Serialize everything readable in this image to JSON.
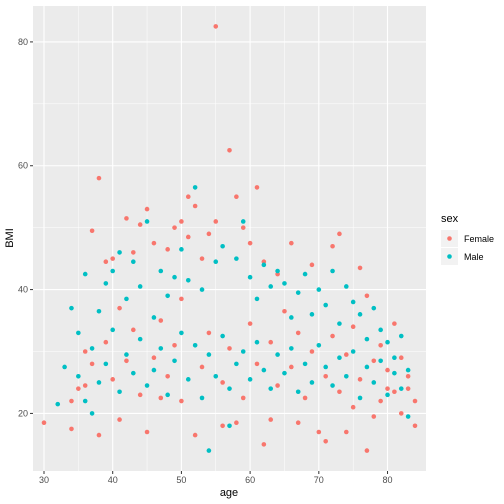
{
  "chart_data": {
    "type": "scatter",
    "xlabel": "age",
    "ylabel": "BMI",
    "xlim": [
      28.4,
      85.6
    ],
    "ylim": [
      10.7,
      85.8
    ],
    "xticks": [
      30,
      40,
      50,
      60,
      70,
      80
    ],
    "yticks": [
      20,
      40,
      60,
      80
    ],
    "grid": true,
    "legend": {
      "title": "sex",
      "placement": "right"
    },
    "series": [
      {
        "name": "Female",
        "color": "#F8766D",
        "points": [
          [
            30,
            18.5
          ],
          [
            34,
            22.0
          ],
          [
            34,
            17.5
          ],
          [
            35,
            24.0
          ],
          [
            36,
            30.0
          ],
          [
            37,
            49.5
          ],
          [
            38,
            58.0
          ],
          [
            38,
            16.5
          ],
          [
            39,
            44.5
          ],
          [
            40,
            45.0
          ],
          [
            41,
            19.0
          ],
          [
            42,
            51.5
          ],
          [
            43,
            46.0
          ],
          [
            44,
            50.5
          ],
          [
            45,
            53.0
          ],
          [
            45,
            17.0
          ],
          [
            46,
            47.5
          ],
          [
            47,
            22.5
          ],
          [
            48,
            46.5
          ],
          [
            49,
            50.0
          ],
          [
            50,
            51.0
          ],
          [
            51,
            48.5
          ],
          [
            51,
            55.0
          ],
          [
            52,
            53.5
          ],
          [
            52,
            16.5
          ],
          [
            53,
            45.0
          ],
          [
            54,
            49.0
          ],
          [
            55,
            82.5
          ],
          [
            55,
            51.0
          ],
          [
            56,
            18.0
          ],
          [
            57,
            62.5
          ],
          [
            58,
            55.0
          ],
          [
            58,
            18.5
          ],
          [
            59,
            50.0
          ],
          [
            60,
            47.5
          ],
          [
            61,
            56.5
          ],
          [
            62,
            15.0
          ],
          [
            62,
            44.5
          ],
          [
            63,
            19.0
          ],
          [
            64,
            42.5
          ],
          [
            66,
            47.5
          ],
          [
            67,
            18.5
          ],
          [
            69,
            44.0
          ],
          [
            70,
            17.0
          ],
          [
            71,
            15.5
          ],
          [
            72,
            47.0
          ],
          [
            73,
            49.0
          ],
          [
            74,
            17.0
          ],
          [
            75,
            21.0
          ],
          [
            76,
            43.5
          ],
          [
            77,
            39.0
          ],
          [
            77,
            14.0
          ],
          [
            78,
            19.5
          ],
          [
            79,
            22.0
          ],
          [
            80,
            24.0
          ],
          [
            81,
            34.5
          ],
          [
            82,
            20.0
          ],
          [
            83,
            26.0
          ],
          [
            84,
            22.0
          ],
          [
            84,
            18.0
          ],
          [
            36,
            24.5
          ],
          [
            37,
            28.0
          ],
          [
            39,
            31.5
          ],
          [
            40,
            25.5
          ],
          [
            41,
            37.0
          ],
          [
            42,
            28.5
          ],
          [
            43,
            33.5
          ],
          [
            44,
            23.0
          ],
          [
            46,
            29.0
          ],
          [
            47,
            35.0
          ],
          [
            48,
            26.0
          ],
          [
            49,
            31.0
          ],
          [
            50,
            22.0
          ],
          [
            50,
            38.5
          ],
          [
            53,
            27.5
          ],
          [
            54,
            33.0
          ],
          [
            56,
            25.0
          ],
          [
            57,
            30.5
          ],
          [
            59,
            22.5
          ],
          [
            60,
            34.5
          ],
          [
            61,
            28.0
          ],
          [
            63,
            31.5
          ],
          [
            64,
            24.5
          ],
          [
            65,
            36.5
          ],
          [
            66,
            27.5
          ],
          [
            67,
            33.0
          ],
          [
            68,
            22.5
          ],
          [
            69,
            30.0
          ],
          [
            71,
            26.0
          ],
          [
            72,
            32.5
          ],
          [
            73,
            23.5
          ],
          [
            74,
            29.5
          ],
          [
            75,
            34.0
          ],
          [
            76,
            25.5
          ],
          [
            78,
            28.5
          ],
          [
            79,
            31.0
          ],
          [
            80,
            27.0
          ],
          [
            81,
            23.5
          ],
          [
            82,
            29.0
          ],
          [
            83,
            24.0
          ]
        ]
      },
      {
        "name": "Male",
        "color": "#00BFC4",
        "points": [
          [
            32,
            21.5
          ],
          [
            33,
            27.5
          ],
          [
            34,
            37.0
          ],
          [
            35,
            33.0
          ],
          [
            36,
            42.5
          ],
          [
            37,
            20.0
          ],
          [
            38,
            36.5
          ],
          [
            39,
            41.0
          ],
          [
            40,
            43.0
          ],
          [
            41,
            46.0
          ],
          [
            42,
            38.5
          ],
          [
            43,
            44.5
          ],
          [
            44,
            40.5
          ],
          [
            45,
            51.0
          ],
          [
            46,
            35.5
          ],
          [
            47,
            43.0
          ],
          [
            48,
            39.0
          ],
          [
            49,
            42.0
          ],
          [
            50,
            46.5
          ],
          [
            51,
            41.5
          ],
          [
            52,
            56.5
          ],
          [
            53,
            40.0
          ],
          [
            54,
            14.0
          ],
          [
            55,
            44.5
          ],
          [
            56,
            47.0
          ],
          [
            57,
            18.0
          ],
          [
            58,
            45.0
          ],
          [
            59,
            51.0
          ],
          [
            60,
            42.0
          ],
          [
            61,
            38.5
          ],
          [
            62,
            44.0
          ],
          [
            63,
            40.5
          ],
          [
            64,
            43.0
          ],
          [
            65,
            41.0
          ],
          [
            66,
            35.5
          ],
          [
            67,
            39.5
          ],
          [
            68,
            42.5
          ],
          [
            69,
            36.0
          ],
          [
            70,
            40.0
          ],
          [
            71,
            37.5
          ],
          [
            72,
            43.0
          ],
          [
            73,
            34.5
          ],
          [
            74,
            40.5
          ],
          [
            75,
            38.0
          ],
          [
            76,
            36.0
          ],
          [
            77,
            32.0
          ],
          [
            78,
            37.0
          ],
          [
            79,
            33.5
          ],
          [
            80,
            31.5
          ],
          [
            81,
            29.0
          ],
          [
            82,
            32.5
          ],
          [
            83,
            27.0
          ],
          [
            83,
            19.5
          ],
          [
            35,
            26.0
          ],
          [
            36,
            22.0
          ],
          [
            37,
            30.5
          ],
          [
            38,
            25.0
          ],
          [
            39,
            28.0
          ],
          [
            40,
            33.5
          ],
          [
            41,
            23.5
          ],
          [
            42,
            29.5
          ],
          [
            43,
            26.5
          ],
          [
            44,
            32.0
          ],
          [
            45,
            24.5
          ],
          [
            46,
            27.0
          ],
          [
            47,
            30.5
          ],
          [
            48,
            23.0
          ],
          [
            49,
            28.5
          ],
          [
            50,
            33.0
          ],
          [
            51,
            25.5
          ],
          [
            52,
            31.0
          ],
          [
            53,
            22.5
          ],
          [
            54,
            29.5
          ],
          [
            55,
            26.0
          ],
          [
            56,
            32.5
          ],
          [
            57,
            24.0
          ],
          [
            58,
            28.0
          ],
          [
            59,
            30.0
          ],
          [
            60,
            25.5
          ],
          [
            61,
            31.5
          ],
          [
            62,
            27.0
          ],
          [
            63,
            24.0
          ],
          [
            64,
            29.5
          ],
          [
            65,
            26.5
          ],
          [
            66,
            30.5
          ],
          [
            67,
            23.5
          ],
          [
            68,
            28.0
          ],
          [
            69,
            25.0
          ],
          [
            70,
            31.0
          ],
          [
            71,
            27.5
          ],
          [
            72,
            24.5
          ],
          [
            73,
            29.0
          ],
          [
            74,
            26.0
          ],
          [
            75,
            30.0
          ],
          [
            76,
            22.5
          ],
          [
            77,
            27.5
          ],
          [
            78,
            25.0
          ],
          [
            79,
            28.5
          ],
          [
            80,
            23.0
          ],
          [
            81,
            26.5
          ],
          [
            82,
            24.0
          ]
        ]
      }
    ]
  }
}
